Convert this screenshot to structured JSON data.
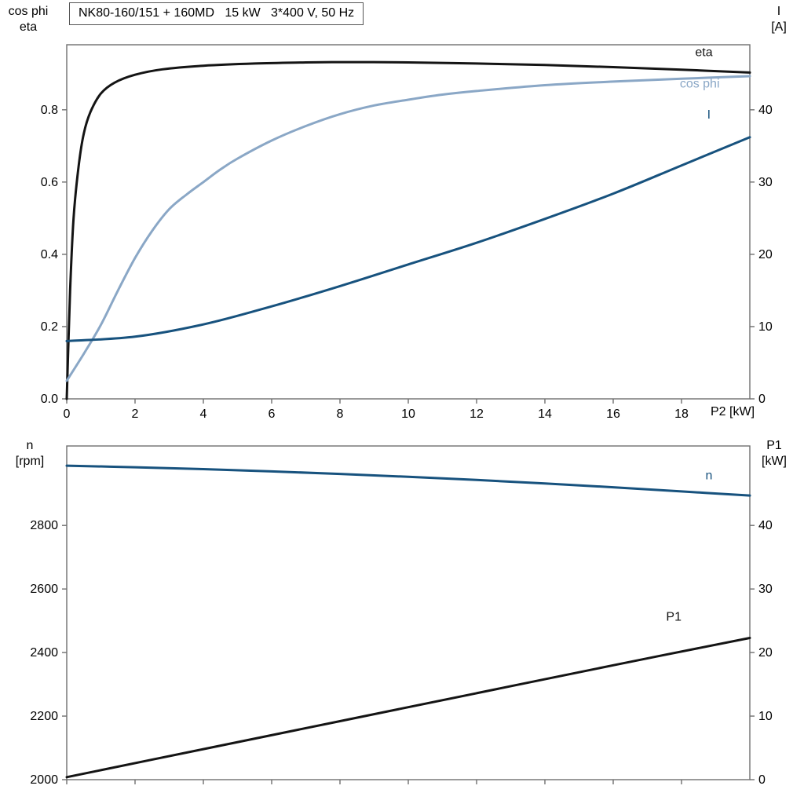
{
  "title": "NK80-160/151 + 160MD   15 kW   3*400 V, 50 Hz",
  "axis_corner_labels": {
    "top_left_line1": "cos phi",
    "top_left_line2": "eta",
    "top_right_line1": "I",
    "top_right_line2": "[A]",
    "x_axis_label": "P2 [kW]",
    "bottom_left_line1": "n",
    "bottom_left_line2": "[rpm]",
    "bottom_right_line1": "P1",
    "bottom_right_line2": "[kW]"
  },
  "colors": {
    "eta": "#141414",
    "cos_phi": "#8aa7c6",
    "current": "#17527e",
    "n": "#17527e",
    "p1": "#141414",
    "frame": "#6f6f6f",
    "text": "#000000"
  },
  "chart_data": [
    {
      "type": "line",
      "title": "NK80-160/151 + 160MD   15 kW   3*400 V, 50 Hz",
      "xlabel": "P2 [kW]",
      "xlim": [
        0,
        20
      ],
      "x_ticks": [
        0,
        2,
        4,
        6,
        8,
        10,
        12,
        14,
        16,
        18
      ],
      "grid": false,
      "legend": "inline-labels",
      "left_axis": {
        "title": "cos phi / eta",
        "lim": [
          0,
          0.98
        ],
        "ticks": [
          0,
          0.2,
          0.4,
          0.6,
          0.8
        ],
        "tick_labels": [
          "0.0",
          "0.2",
          "0.4",
          "0.6",
          "0.8"
        ]
      },
      "right_axis": {
        "title": "I [A]",
        "lim": [
          0,
          49
        ],
        "ticks": [
          0,
          10,
          20,
          30,
          40
        ],
        "tick_labels": [
          "0",
          "10",
          "20",
          "30",
          "40"
        ]
      },
      "series": [
        {
          "name": "eta",
          "axis": "left",
          "color_key": "eta",
          "x": [
            0,
            0.1,
            0.2,
            0.35,
            0.5,
            0.7,
            1.0,
            1.4,
            2.0,
            2.8,
            4.0,
            5.5,
            7.0,
            8.5,
            10,
            12,
            14,
            16,
            18,
            20
          ],
          "y": [
            0,
            0.3,
            0.5,
            0.645,
            0.735,
            0.795,
            0.845,
            0.875,
            0.897,
            0.912,
            0.922,
            0.928,
            0.931,
            0.932,
            0.931,
            0.928,
            0.924,
            0.918,
            0.911,
            0.903
          ],
          "label": {
            "text": "eta",
            "x": 18.4,
            "y": 0.948
          }
        },
        {
          "name": "cos phi",
          "axis": "left",
          "color_key": "cos_phi",
          "x": [
            0,
            0.5,
            1,
            1.5,
            2,
            2.5,
            3,
            3.5,
            4,
            4.5,
            5,
            6,
            7,
            8,
            9,
            10,
            11,
            12,
            14,
            16,
            18,
            20
          ],
          "y": [
            0.05,
            0.125,
            0.205,
            0.3,
            0.39,
            0.465,
            0.525,
            0.565,
            0.6,
            0.635,
            0.665,
            0.715,
            0.755,
            0.788,
            0.812,
            0.828,
            0.842,
            0.852,
            0.868,
            0.878,
            0.886,
            0.893
          ],
          "label": {
            "text": "cos phi",
            "x": 17.95,
            "y": 0.862
          }
        },
        {
          "name": "I",
          "axis": "right",
          "color_key": "current",
          "x": [
            0,
            2,
            4,
            6,
            8,
            10,
            12,
            14,
            16,
            18,
            20
          ],
          "y": [
            8.0,
            8.6,
            10.3,
            12.8,
            15.6,
            18.6,
            21.6,
            24.9,
            28.4,
            32.3,
            36.2
          ],
          "label": {
            "text": "I",
            "x": 18.75,
            "y": 38.8
          }
        }
      ]
    },
    {
      "type": "line",
      "title": "",
      "xlabel": "",
      "xlim": [
        0,
        20
      ],
      "x_ticks": [
        0,
        2,
        4,
        6,
        8,
        10,
        12,
        14,
        16,
        18
      ],
      "grid": false,
      "legend": "inline-labels",
      "left_axis": {
        "title": "n [rpm]",
        "lim": [
          2000,
          3050
        ],
        "ticks": [
          2000,
          2200,
          2400,
          2600,
          2800
        ],
        "tick_labels": [
          "2000",
          "2200",
          "2400",
          "2600",
          "2800"
        ]
      },
      "right_axis": {
        "title": "P1 [kW]",
        "lim": [
          0,
          52.5
        ],
        "ticks": [
          0,
          10,
          20,
          30,
          40
        ],
        "tick_labels": [
          "0",
          "10",
          "20",
          "30",
          "40"
        ]
      },
      "series": [
        {
          "name": "n",
          "axis": "left",
          "color_key": "n",
          "x": [
            0,
            2,
            4,
            6,
            8,
            10,
            12,
            14,
            16,
            18,
            20
          ],
          "y": [
            2988,
            2983,
            2977,
            2970,
            2962,
            2953,
            2943,
            2932,
            2920,
            2907,
            2894
          ],
          "label": {
            "text": "n",
            "x": 18.7,
            "y": 2945
          }
        },
        {
          "name": "P1",
          "axis": "right",
          "color_key": "p1",
          "x": [
            0,
            4,
            8,
            12,
            16,
            20
          ],
          "y": [
            0.4,
            4.8,
            9.2,
            13.6,
            18.0,
            22.3
          ],
          "label": {
            "text": "P1",
            "x": 17.55,
            "y": 25.0
          }
        }
      ]
    }
  ]
}
